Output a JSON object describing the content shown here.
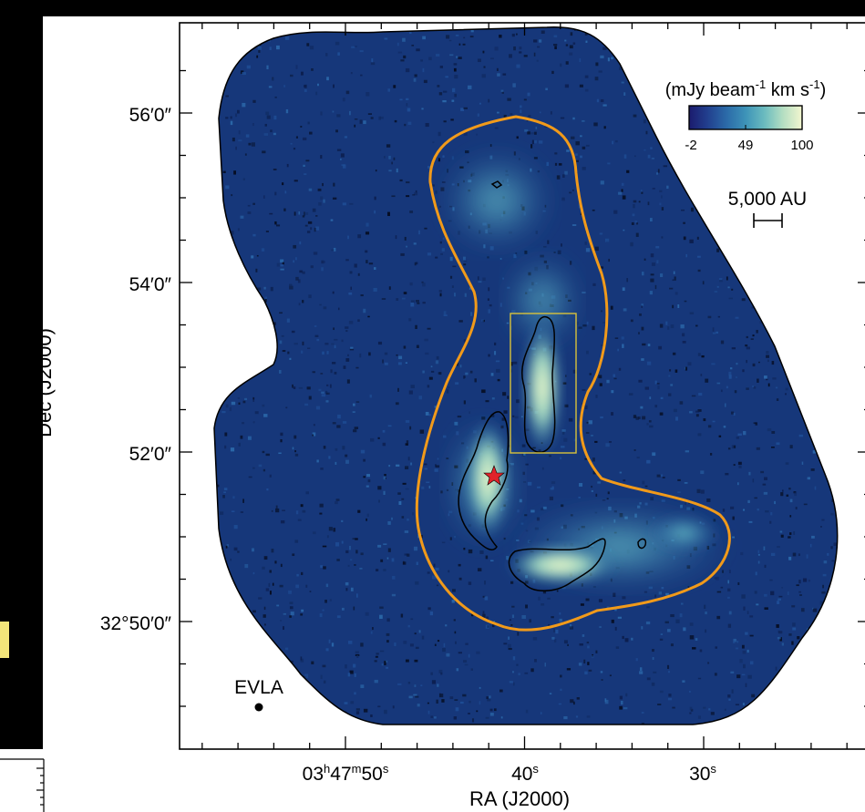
{
  "chart_data": {
    "type": "heatmap",
    "xlabel": "RA (J2000)",
    "ylabel": "Dec (J2000)",
    "x_ticks": [
      {
        "label": "03h47m50s",
        "parts": [
          "03",
          "h",
          "47",
          "m",
          "50",
          "s"
        ]
      },
      {
        "label": "40s",
        "parts": [
          "40",
          "s"
        ]
      },
      {
        "label": "30s",
        "parts": [
          "30",
          "s"
        ]
      }
    ],
    "y_ticks": [
      "56′0″",
      "54′0″",
      "52′0″",
      "32°50′0″"
    ],
    "colorbar": {
      "title": "(mJy beam-1 km s-1)",
      "title_parts": [
        "(mJy beam",
        "-1",
        " km s",
        "-1",
        ")"
      ],
      "ticks": [
        "-2",
        "49",
        "100"
      ],
      "range": [
        -2,
        100
      ],
      "colormap": [
        "#1b1b6e",
        "#22418f",
        "#2b6aa8",
        "#3d93b8",
        "#6cbcbf",
        "#b4dec2",
        "#f3f6cf"
      ]
    },
    "scale_bar_label": "5,000 AU",
    "beam_label": "EVLA",
    "colors": {
      "outer_contour": "#f19a1a",
      "inner_contour": "#000000",
      "box": "#d9c23a",
      "star": "#e0232a",
      "background_map": "#163a7c"
    }
  }
}
